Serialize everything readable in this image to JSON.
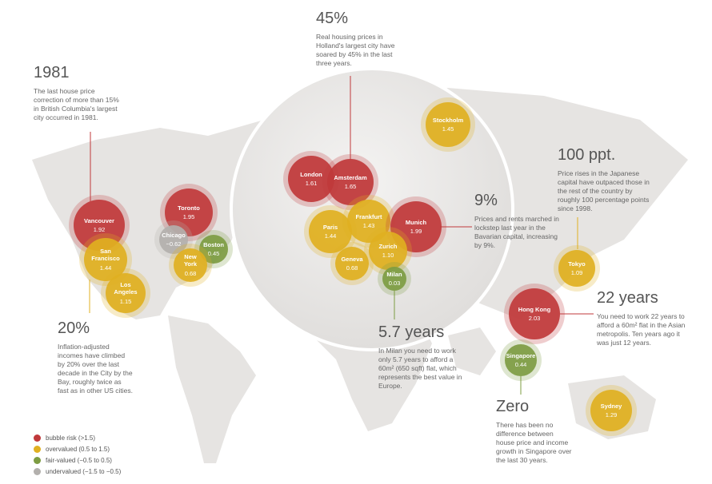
{
  "legend": [
    {
      "label": "bubble risk (>1.5)",
      "color": "#c0393b"
    },
    {
      "label": "overvalued (0.5 to 1.5)",
      "color": "#e0b021"
    },
    {
      "label": "fair-valued (−0.5 to 0.5)",
      "color": "#7d9c42"
    },
    {
      "label": "undervalued (−1.5 to −0.5)",
      "color": "#b3b0ad"
    }
  ],
  "cities": [
    {
      "name": "Vancouver",
      "value": "1.92",
      "color": "#c0393b"
    },
    {
      "name": "San Francisco",
      "value": "1.44",
      "color": "#e0b021"
    },
    {
      "name": "Los Angeles",
      "value": "1.15",
      "color": "#e0b021"
    },
    {
      "name": "Toronto",
      "value": "1.95",
      "color": "#c0393b"
    },
    {
      "name": "Chicago",
      "value": "−0.62",
      "color": "#b3b0ad"
    },
    {
      "name": "Boston",
      "value": "0.45",
      "color": "#7d9c42"
    },
    {
      "name": "New York",
      "value": "0.68",
      "color": "#e0b021"
    },
    {
      "name": "London",
      "value": "1.61",
      "color": "#c0393b"
    },
    {
      "name": "Amsterdam",
      "value": "1.65",
      "color": "#c0393b"
    },
    {
      "name": "Stockholm",
      "value": "1.45",
      "color": "#e0b021"
    },
    {
      "name": "Paris",
      "value": "1.44",
      "color": "#e0b021"
    },
    {
      "name": "Frankfurt",
      "value": "1.43",
      "color": "#e0b021"
    },
    {
      "name": "Munich",
      "value": "1.99",
      "color": "#c0393b"
    },
    {
      "name": "Zurich",
      "value": "1.10",
      "color": "#e0b021"
    },
    {
      "name": "Geneva",
      "value": "0.68",
      "color": "#e0b021"
    },
    {
      "name": "Milan",
      "value": "0.03",
      "color": "#7d9c42"
    },
    {
      "name": "Tokyo",
      "value": "1.09",
      "color": "#e0b021"
    },
    {
      "name": "Hong Kong",
      "value": "2.03",
      "color": "#c0393b"
    },
    {
      "name": "Singapore",
      "value": "0.44",
      "color": "#7d9c42"
    },
    {
      "name": "Sydney",
      "value": "1.29",
      "color": "#e0b021"
    }
  ],
  "annotations": [
    {
      "heading": "1981",
      "text": "The last house price correction of more than 15% in British Columbia's largest city occurred in 1981."
    },
    {
      "heading": "45%",
      "text": "Real housing prices in Holland's largest city have soared by 45% in the last three years."
    },
    {
      "heading": "9%",
      "text": "Prices and rents marched in lockstep last year in the Bavarian capital, increasing by 9%."
    },
    {
      "heading": "100 ppt.",
      "text": "Price rises in the Japanese capital have outpaced those in the rest of the country by roughly 100 percentage points since 1998."
    },
    {
      "heading": "22 years",
      "text": "You need to work 22 years to afford a 60m² flat in the Asian metropolis. Ten years ago it was just 12 years."
    },
    {
      "heading": "20%",
      "text": "Inflation-adjusted incomes have climbed by 20% over the last decade in the City by the Bay, roughly twice as fast as in other US cities."
    },
    {
      "heading": "5.7 years",
      "text": "In Milan you need to work only 5.7 years to afford a 60m² (650 sqft) flat, which represents the best value in Europe."
    },
    {
      "heading": "Zero",
      "text": "There has been no difference between house price and income growth in Singapore over the last 30 years."
    }
  ]
}
